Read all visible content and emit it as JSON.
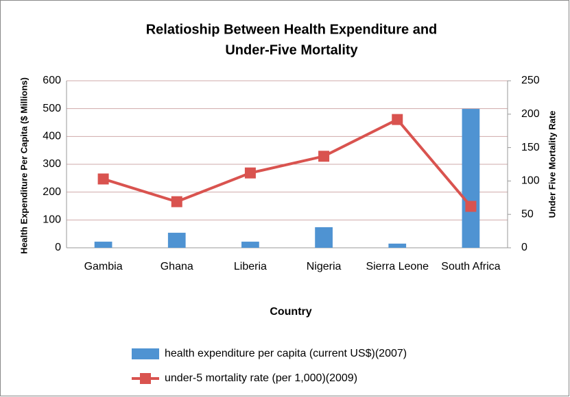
{
  "chart_data": {
    "type": "bar",
    "title": [
      "Relatioship Between Health Expenditure and",
      "Under-Five Mortality"
    ],
    "x_label": "Country",
    "y_label": "Health Expenditure Per Capita ($ Millions)",
    "y2_label": "Under Five Mortality Rate",
    "categories": [
      "Gambia",
      "Ghana",
      "Liberia",
      "Nigeria",
      "Sierra Leone",
      "South Africa"
    ],
    "series": [
      {
        "name": "health expenditure per capita (current US$)(2007)",
        "type": "bar",
        "color": "#4f93d2",
        "values": [
          22,
          54,
          22,
          74,
          15,
          499
        ]
      },
      {
        "name": "under-5 mortality rate (per 1,000)(2009)",
        "type": "line",
        "axis": "y2",
        "color": "#d9534f",
        "values": [
          103,
          69,
          112,
          137,
          192,
          62
        ]
      }
    ],
    "ylim": [
      0,
      600
    ],
    "yticks": [
      0,
      100,
      200,
      300,
      400,
      500,
      600
    ],
    "y2lim": [
      0,
      250
    ],
    "y2ticks": [
      0,
      50,
      100,
      150,
      200,
      250
    ],
    "grid": true,
    "legend": "bottom"
  }
}
